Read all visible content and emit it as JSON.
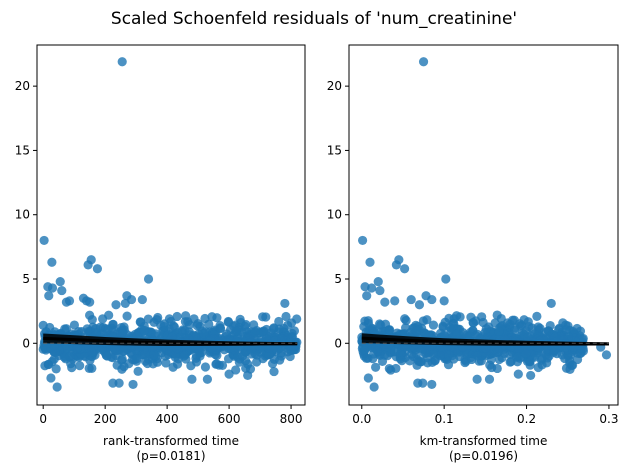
{
  "figure": {
    "suptitle": "Scaled Schoenfeld residuals of 'num_creatinine'"
  },
  "chart_data": [
    {
      "type": "scatter",
      "title": "",
      "xlabel": "rank-transformed time",
      "xlabel2": "(p=0.0181)",
      "ylabel": "",
      "xlim": [
        -20,
        845
      ],
      "ylim": [
        -4.8,
        23.2
      ],
      "xticks": [
        0,
        200,
        400,
        600,
        800
      ],
      "xtick_labels": [
        "0",
        "200",
        "400",
        "600",
        "800"
      ],
      "yticks": [
        0,
        5,
        10,
        15,
        20
      ],
      "ytick_labels": [
        "0",
        "5",
        "10",
        "15",
        "20"
      ],
      "grid": false,
      "point_color": "#1f77b4",
      "trend_color": "#000000",
      "band": {
        "x": [
          0,
          820
        ],
        "y": [
          0,
          0
        ]
      },
      "trend": {
        "x": [
          0,
          100,
          200,
          300,
          400,
          500,
          600,
          700,
          820
        ],
        "y": [
          0.38,
          0.28,
          0.18,
          0.1,
          0.04,
          0.0,
          -0.02,
          -0.03,
          -0.04
        ]
      },
      "outliers": [
        {
          "x": 3,
          "y": 8.0
        },
        {
          "x": 15,
          "y": 4.4
        },
        {
          "x": 18,
          "y": 3.7
        },
        {
          "x": 28,
          "y": 6.3
        },
        {
          "x": 30,
          "y": 4.3
        },
        {
          "x": 55,
          "y": 4.8
        },
        {
          "x": 60,
          "y": 4.1
        },
        {
          "x": 75,
          "y": 3.2
        },
        {
          "x": 85,
          "y": 3.3
        },
        {
          "x": 130,
          "y": 3.5
        },
        {
          "x": 140,
          "y": 3.3
        },
        {
          "x": 150,
          "y": 3.2
        },
        {
          "x": 145,
          "y": 6.1
        },
        {
          "x": 155,
          "y": 6.5
        },
        {
          "x": 175,
          "y": 5.8
        },
        {
          "x": 235,
          "y": 3.0
        },
        {
          "x": 255,
          "y": 21.9
        },
        {
          "x": 265,
          "y": 3.1
        },
        {
          "x": 270,
          "y": 3.7
        },
        {
          "x": 285,
          "y": 3.4
        },
        {
          "x": 320,
          "y": 3.4
        },
        {
          "x": 340,
          "y": 5.0
        },
        {
          "x": 780,
          "y": 3.1
        },
        {
          "x": 25,
          "y": -2.7
        },
        {
          "x": 45,
          "y": -3.4
        },
        {
          "x": 225,
          "y": -3.1
        },
        {
          "x": 245,
          "y": -3.1
        },
        {
          "x": 290,
          "y": -3.2
        },
        {
          "x": 480,
          "y": -2.8
        },
        {
          "x": 530,
          "y": -2.8
        },
        {
          "x": 600,
          "y": -2.4
        },
        {
          "x": 660,
          "y": -2.5
        },
        {
          "x": 745,
          "y": -2.2
        }
      ],
      "cloud": {
        "n": 820,
        "x_range": [
          0,
          820
        ],
        "y_core_sd": 0.8,
        "y_min": -2.2,
        "y_max": 2.4
      }
    },
    {
      "type": "scatter",
      "title": "",
      "xlabel": "km-transformed time",
      "xlabel2": "(p=0.0196)",
      "ylabel": "",
      "xlim": [
        -0.0155,
        0.311
      ],
      "ylim": [
        -4.8,
        23.2
      ],
      "xticks": [
        0.0,
        0.1,
        0.2,
        0.3
      ],
      "xtick_labels": [
        "0.0",
        "0.1",
        "0.2",
        "0.3"
      ],
      "yticks": [
        0,
        5,
        10,
        15,
        20
      ],
      "ytick_labels": [
        "0",
        "5",
        "10",
        "15",
        "20"
      ],
      "grid": false,
      "point_color": "#1f77b4",
      "trend_color": "#000000",
      "band": {
        "x": [
          0,
          0.3
        ],
        "y": [
          0,
          0
        ]
      },
      "trend": {
        "x": [
          0,
          0.03,
          0.06,
          0.1,
          0.15,
          0.2,
          0.25,
          0.3
        ],
        "y": [
          0.4,
          0.3,
          0.22,
          0.12,
          0.05,
          0.0,
          -0.03,
          -0.05
        ]
      },
      "outliers": [
        {
          "x": 0.001,
          "y": 8.0
        },
        {
          "x": 0.004,
          "y": 4.4
        },
        {
          "x": 0.006,
          "y": 3.7
        },
        {
          "x": 0.01,
          "y": 6.3
        },
        {
          "x": 0.012,
          "y": 4.3
        },
        {
          "x": 0.02,
          "y": 4.8
        },
        {
          "x": 0.022,
          "y": 4.1
        },
        {
          "x": 0.028,
          "y": 3.2
        },
        {
          "x": 0.04,
          "y": 3.3
        },
        {
          "x": 0.045,
          "y": 6.5
        },
        {
          "x": 0.042,
          "y": 6.1
        },
        {
          "x": 0.052,
          "y": 5.8
        },
        {
          "x": 0.06,
          "y": 3.4
        },
        {
          "x": 0.07,
          "y": 3.0
        },
        {
          "x": 0.075,
          "y": 21.9
        },
        {
          "x": 0.078,
          "y": 3.7
        },
        {
          "x": 0.085,
          "y": 3.4
        },
        {
          "x": 0.1,
          "y": 3.3
        },
        {
          "x": 0.102,
          "y": 5.0
        },
        {
          "x": 0.23,
          "y": 3.1
        },
        {
          "x": 0.008,
          "y": -2.7
        },
        {
          "x": 0.015,
          "y": -3.4
        },
        {
          "x": 0.068,
          "y": -3.1
        },
        {
          "x": 0.074,
          "y": -3.1
        },
        {
          "x": 0.085,
          "y": -3.2
        },
        {
          "x": 0.14,
          "y": -2.8
        },
        {
          "x": 0.155,
          "y": -2.8
        },
        {
          "x": 0.19,
          "y": -2.4
        },
        {
          "x": 0.205,
          "y": -2.5
        },
        {
          "x": 0.265,
          "y": -0.8
        },
        {
          "x": 0.29,
          "y": -0.3
        },
        {
          "x": 0.297,
          "y": -0.9
        }
      ],
      "cloud": {
        "n": 820,
        "x_range": [
          0,
          0.27
        ],
        "y_core_sd": 0.8,
        "y_min": -2.2,
        "y_max": 2.4
      }
    }
  ]
}
